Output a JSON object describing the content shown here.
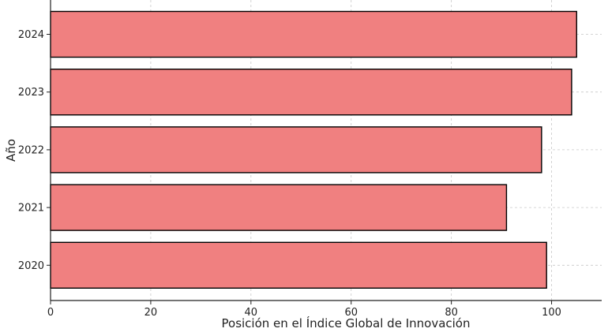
{
  "chart_data": {
    "type": "bar",
    "orientation": "horizontal",
    "categories": [
      "2020",
      "2021",
      "2022",
      "2023",
      "2024"
    ],
    "values": [
      99,
      91,
      98,
      104,
      105
    ],
    "title": "",
    "xlabel": "Posición en el Índice Global de Innovación",
    "ylabel": "Año",
    "xlim": [
      0,
      110
    ],
    "xticks": [
      0,
      20,
      40,
      60,
      80,
      100
    ],
    "grid": true,
    "bar_color": "#f08080",
    "bar_edge_color": "#000000"
  }
}
